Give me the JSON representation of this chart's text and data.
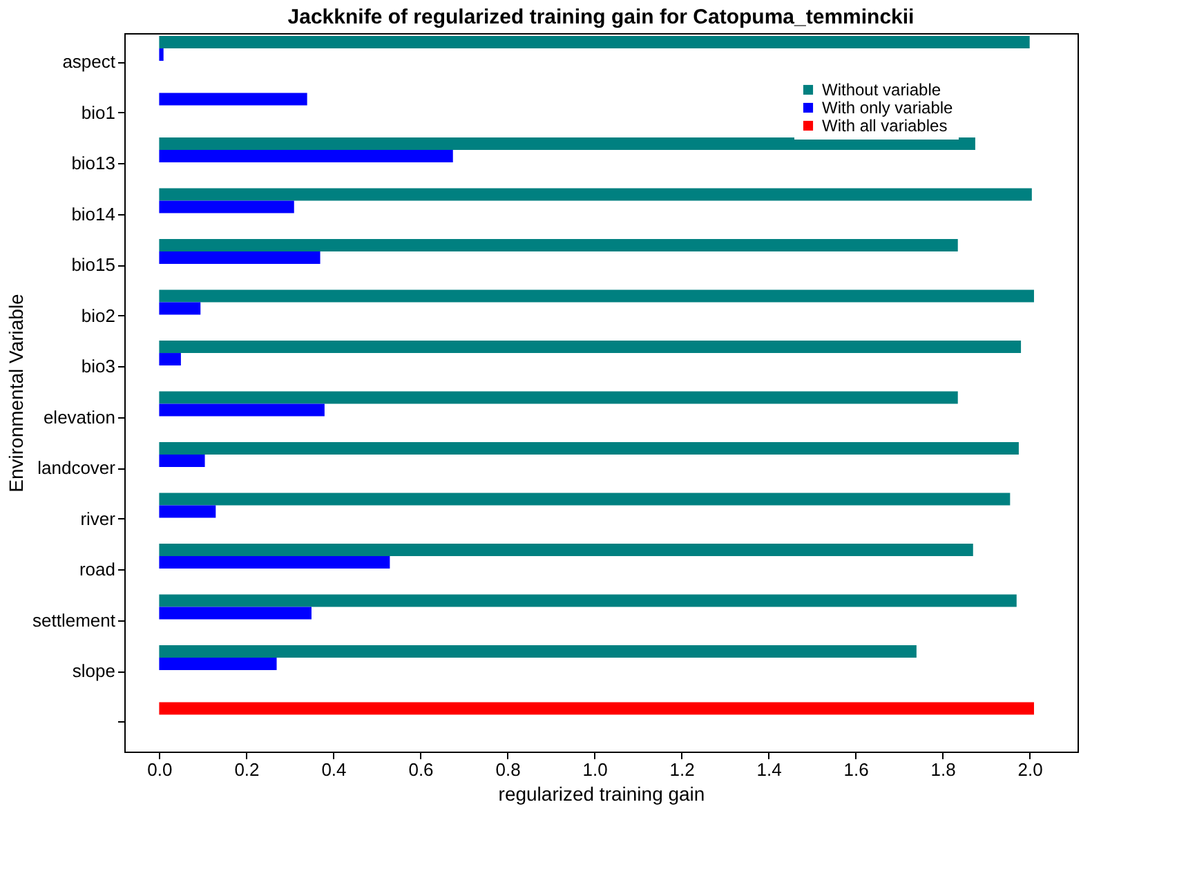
{
  "chart_data": {
    "type": "bar",
    "orientation": "horizontal",
    "title": "Jackknife of regularized training gain for Catopuma_temminckii",
    "xlabel": "regularized training gain",
    "ylabel": "Environmental Variable",
    "categories": [
      "aspect",
      "bio1",
      "bio13",
      "bio14",
      "bio15",
      "bio2",
      "bio3",
      "elevation",
      "landcover",
      "river",
      "road",
      "settlement",
      "slope",
      null
    ],
    "series": [
      {
        "name": "Without variable",
        "color": "#008080",
        "values": [
          2.0,
          null,
          1.875,
          2.005,
          1.835,
          2.01,
          1.98,
          1.835,
          1.975,
          1.955,
          1.87,
          1.97,
          1.74,
          null
        ]
      },
      {
        "name": "With only variable",
        "color": "#0000ff",
        "values": [
          0.01,
          0.34,
          0.675,
          0.31,
          0.37,
          0.095,
          0.05,
          0.38,
          0.105,
          0.13,
          0.53,
          0.35,
          0.27,
          null
        ]
      },
      {
        "name": "With all variables",
        "color": "#ff0000",
        "values": [
          null,
          null,
          null,
          null,
          null,
          null,
          null,
          null,
          null,
          null,
          null,
          null,
          null,
          2.01
        ]
      }
    ],
    "xlim": [
      -0.08,
      2.11
    ],
    "xticks": [
      {
        "value": 0,
        "label": "0.0"
      },
      {
        "value": 0.2,
        "label": "0.2"
      },
      {
        "value": 0.4,
        "label": "0.4"
      },
      {
        "value": 0.6,
        "label": "0.6"
      },
      {
        "value": 0.8,
        "label": "0.8"
      },
      {
        "value": 1.0,
        "label": "1.0"
      },
      {
        "value": 1.2,
        "label": "1.2"
      },
      {
        "value": 1.4,
        "label": "1.4"
      },
      {
        "value": 1.6,
        "label": "1.6"
      },
      {
        "value": 1.8,
        "label": "1.8"
      },
      {
        "value": 2.0,
        "label": "2.0"
      }
    ],
    "legend": "top right",
    "grid": false
  }
}
